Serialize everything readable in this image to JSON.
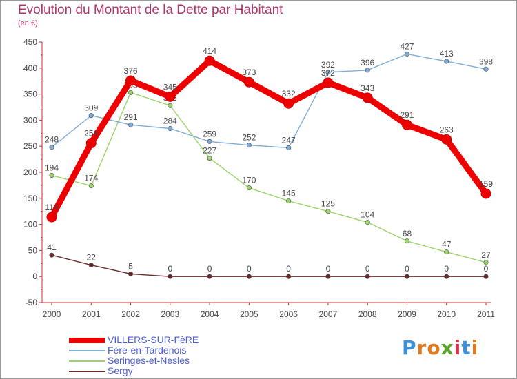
{
  "header": {
    "title": "Evolution du Montant de la Dette par Habitant",
    "unit": "(en €)"
  },
  "logo": {
    "letters": [
      "P",
      "r",
      "o",
      "x",
      "i",
      "t",
      "i"
    ],
    "colors": [
      "#3d8fd8",
      "#e07a1f",
      "#e07a1f",
      "#5aa42c",
      "#d4304a",
      "#3d8fd8",
      "#e07a1f"
    ]
  },
  "chart_data": {
    "type": "line",
    "title": "Evolution du Montant de la Dette par Habitant",
    "ylabel": "(en €)",
    "xlabel": "",
    "ylim": [
      -50,
      450
    ],
    "yticks": [
      "-50",
      "0",
      "50",
      "100",
      "150",
      "200",
      "250",
      "300",
      "350",
      "400",
      "450"
    ],
    "categories": [
      "2000",
      "2001",
      "2002",
      "2003",
      "2004",
      "2005",
      "2006",
      "2007",
      "2008",
      "2009",
      "2010",
      "2011"
    ],
    "grid": false,
    "legend_position": "bottom-left",
    "series": [
      {
        "name": "Sergy",
        "color": "#6b2a2a",
        "values": [
          41,
          22,
          5,
          0,
          0,
          0,
          0,
          0,
          0,
          0,
          0,
          0
        ],
        "labels": [
          "41",
          "22",
          "5",
          "0",
          "0",
          "0",
          "0",
          "0",
          "0",
          "0",
          "0",
          "0"
        ]
      },
      {
        "name": "Seringes-et-Nesles",
        "color": "#9bd46a",
        "values": [
          194,
          174,
          353,
          328,
          227,
          170,
          145,
          125,
          104,
          68,
          47,
          27
        ],
        "labels": [
          "194",
          "174",
          "353",
          "328",
          "227",
          "170",
          "145",
          "125",
          "104",
          "68",
          "47",
          "27"
        ]
      },
      {
        "name": "Fère-en-Tardenois",
        "color": "#7eacd6",
        "values": [
          248,
          309,
          291,
          284,
          259,
          252,
          247,
          392,
          396,
          427,
          413,
          398
        ],
        "labels": [
          "248",
          "309",
          "291",
          "284",
          "259",
          "252",
          "247",
          "392",
          "396",
          "427",
          "413",
          "398"
        ]
      },
      {
        "name": "VILLERS-SUR-FèRE",
        "color": "#ee0000",
        "values": [
          114,
          256,
          376,
          345,
          414,
          373,
          332,
          372,
          343,
          291,
          263,
          159
        ],
        "labels": [
          "114",
          "256",
          "376",
          "345",
          "414",
          "373",
          "332",
          "372",
          "343",
          "291",
          "263",
          "159"
        ]
      }
    ],
    "legend_order": [
      "VILLERS-SUR-FèRE",
      "Fère-en-Tardenois",
      "Seringes-et-Nesles",
      "Sergy"
    ]
  }
}
